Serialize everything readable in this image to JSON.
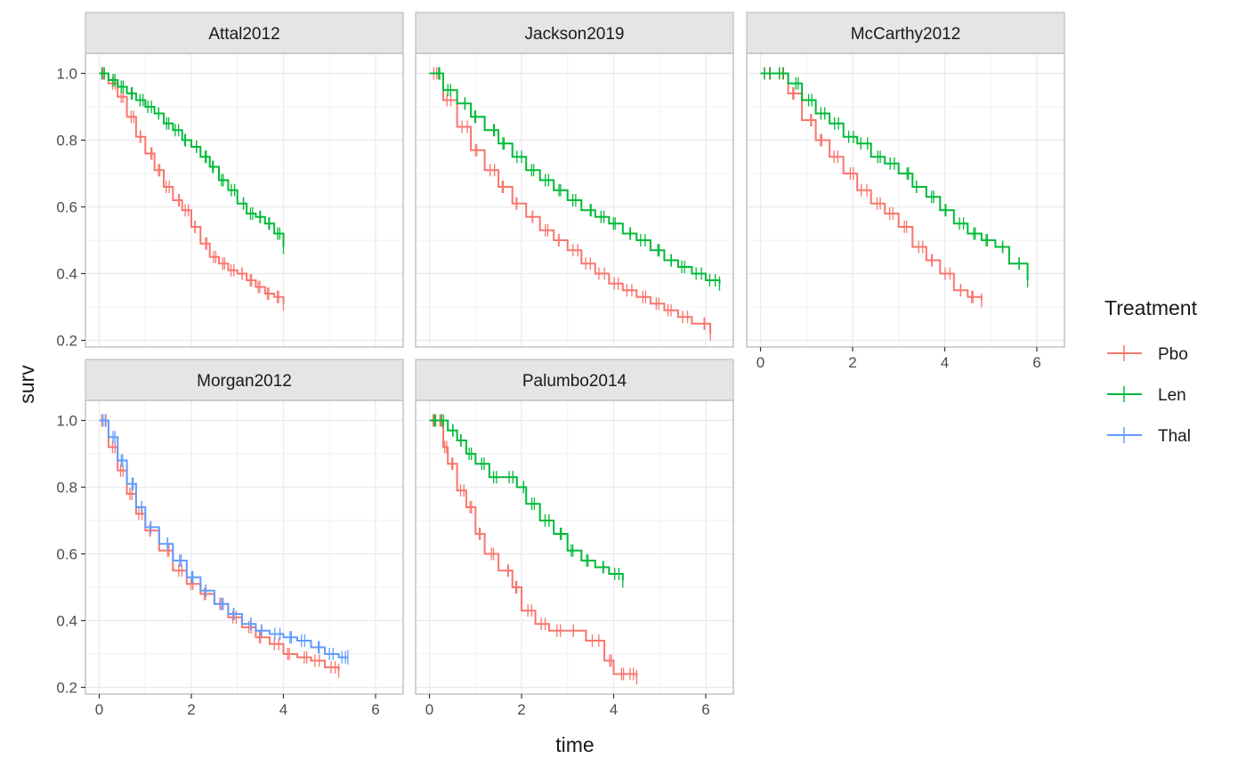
{
  "chart_data": {
    "type": "line",
    "subtype": "kaplan-meier step curves with censor marks, faceted",
    "xlabel": "time",
    "ylabel": "surv",
    "xlim": [
      0,
      6.5
    ],
    "ylim": [
      0.2,
      1.0
    ],
    "x_ticks": [
      "0",
      "2",
      "4",
      "6"
    ],
    "y_ticks": [
      "0.2",
      "0.4",
      "0.6",
      "0.8",
      "1.0"
    ],
    "grid": true,
    "legend": {
      "title": "Treatment",
      "position": "right",
      "entries": [
        {
          "label": "Pbo",
          "color": "#F8766D"
        },
        {
          "label": "Len",
          "color": "#00BA38"
        },
        {
          "label": "Thal",
          "color": "#619CFF"
        }
      ]
    },
    "facets": [
      {
        "title": "Attal2012",
        "series": [
          {
            "name": "Pbo",
            "color": "#F8766D",
            "x": [
              0,
              0.2,
              0.4,
              0.6,
              0.8,
              1.0,
              1.2,
              1.4,
              1.6,
              1.8,
              2.0,
              2.2,
              2.4,
              2.6,
              2.8,
              3.0,
              3.2,
              3.4,
              3.6,
              3.8,
              4.0
            ],
            "y": [
              1.0,
              0.97,
              0.93,
              0.87,
              0.81,
              0.76,
              0.71,
              0.66,
              0.62,
              0.59,
              0.54,
              0.49,
              0.45,
              0.43,
              0.41,
              0.4,
              0.38,
              0.36,
              0.34,
              0.33,
              0.31
            ]
          },
          {
            "name": "Len",
            "color": "#00BA38",
            "x": [
              0,
              0.2,
              0.4,
              0.6,
              0.8,
              1.0,
              1.2,
              1.4,
              1.6,
              1.8,
              2.0,
              2.2,
              2.4,
              2.6,
              2.8,
              3.0,
              3.2,
              3.4,
              3.6,
              3.8,
              4.0
            ],
            "y": [
              1.0,
              0.98,
              0.96,
              0.94,
              0.92,
              0.9,
              0.88,
              0.85,
              0.83,
              0.8,
              0.78,
              0.75,
              0.72,
              0.68,
              0.65,
              0.61,
              0.58,
              0.57,
              0.55,
              0.52,
              0.48
            ]
          }
        ]
      },
      {
        "title": "Jackson2019",
        "series": [
          {
            "name": "Pbo",
            "color": "#F8766D",
            "x": [
              0,
              0.3,
              0.6,
              0.9,
              1.2,
              1.5,
              1.8,
              2.1,
              2.4,
              2.7,
              3.0,
              3.3,
              3.6,
              3.9,
              4.2,
              4.5,
              4.8,
              5.1,
              5.4,
              5.7,
              6.1
            ],
            "y": [
              1.0,
              0.92,
              0.84,
              0.77,
              0.71,
              0.66,
              0.61,
              0.57,
              0.53,
              0.5,
              0.47,
              0.43,
              0.4,
              0.37,
              0.35,
              0.33,
              0.31,
              0.29,
              0.27,
              0.25,
              0.22
            ]
          },
          {
            "name": "Len",
            "color": "#00BA38",
            "x": [
              0,
              0.3,
              0.6,
              0.9,
              1.2,
              1.5,
              1.8,
              2.1,
              2.4,
              2.7,
              3.0,
              3.3,
              3.6,
              3.9,
              4.2,
              4.5,
              4.8,
              5.1,
              5.4,
              5.7,
              6.0,
              6.3
            ],
            "y": [
              1.0,
              0.95,
              0.91,
              0.87,
              0.83,
              0.79,
              0.75,
              0.71,
              0.68,
              0.65,
              0.62,
              0.59,
              0.57,
              0.55,
              0.52,
              0.5,
              0.47,
              0.44,
              0.42,
              0.4,
              0.38,
              0.37
            ]
          }
        ]
      },
      {
        "title": "McCarthy2012",
        "series": [
          {
            "name": "Pbo",
            "color": "#F8766D",
            "x": [
              0,
              0.3,
              0.6,
              0.9,
              1.2,
              1.5,
              1.8,
              2.1,
              2.4,
              2.7,
              3.0,
              3.3,
              3.6,
              3.9,
              4.2,
              4.5,
              4.8
            ],
            "y": [
              1.0,
              1.0,
              0.94,
              0.86,
              0.8,
              0.75,
              0.7,
              0.65,
              0.61,
              0.58,
              0.54,
              0.48,
              0.44,
              0.4,
              0.35,
              0.33,
              0.32
            ]
          },
          {
            "name": "Len",
            "color": "#00BA38",
            "x": [
              0,
              0.3,
              0.6,
              0.9,
              1.2,
              1.5,
              1.8,
              2.1,
              2.4,
              2.7,
              3.0,
              3.3,
              3.6,
              3.9,
              4.2,
              4.5,
              4.8,
              5.1,
              5.4,
              5.8
            ],
            "y": [
              1.0,
              1.0,
              0.97,
              0.92,
              0.88,
              0.85,
              0.81,
              0.79,
              0.75,
              0.73,
              0.7,
              0.66,
              0.63,
              0.59,
              0.55,
              0.52,
              0.5,
              0.48,
              0.43,
              0.38
            ]
          }
        ]
      },
      {
        "title": "Morgan2012",
        "series": [
          {
            "name": "Pbo",
            "color": "#F8766D",
            "x": [
              0,
              0.2,
              0.4,
              0.6,
              0.8,
              1.0,
              1.3,
              1.6,
              1.9,
              2.2,
              2.5,
              2.8,
              3.1,
              3.4,
              3.7,
              4.0,
              4.3,
              4.6,
              4.9,
              5.2
            ],
            "y": [
              1.0,
              0.92,
              0.85,
              0.78,
              0.72,
              0.67,
              0.61,
              0.55,
              0.51,
              0.48,
              0.45,
              0.41,
              0.38,
              0.35,
              0.33,
              0.3,
              0.29,
              0.28,
              0.26,
              0.25
            ]
          },
          {
            "name": "Thal",
            "color": "#619CFF",
            "x": [
              0,
              0.2,
              0.4,
              0.6,
              0.8,
              1.0,
              1.3,
              1.6,
              1.9,
              2.2,
              2.5,
              2.8,
              3.1,
              3.4,
              3.7,
              4.0,
              4.3,
              4.6,
              4.9,
              5.2,
              5.4
            ],
            "y": [
              1.0,
              0.95,
              0.88,
              0.81,
              0.74,
              0.68,
              0.63,
              0.58,
              0.53,
              0.49,
              0.45,
              0.42,
              0.39,
              0.37,
              0.36,
              0.35,
              0.34,
              0.32,
              0.3,
              0.29,
              0.29
            ]
          }
        ]
      },
      {
        "title": "Palumbo2014",
        "series": [
          {
            "name": "Pbo",
            "color": "#F8766D",
            "x": [
              0,
              0.2,
              0.3,
              0.4,
              0.6,
              0.8,
              1.0,
              1.2,
              1.5,
              1.8,
              2.0,
              2.3,
              2.6,
              3.0,
              3.4,
              3.8,
              4.0,
              4.3,
              4.5
            ],
            "y": [
              1.0,
              1.0,
              0.92,
              0.87,
              0.79,
              0.74,
              0.66,
              0.6,
              0.55,
              0.5,
              0.43,
              0.39,
              0.37,
              0.37,
              0.34,
              0.28,
              0.24,
              0.24,
              0.23
            ]
          },
          {
            "name": "Len",
            "color": "#00BA38",
            "x": [
              0,
              0.2,
              0.4,
              0.6,
              0.8,
              1.0,
              1.3,
              1.6,
              1.9,
              2.1,
              2.4,
              2.7,
              3.0,
              3.3,
              3.6,
              3.9,
              4.2
            ],
            "y": [
              1.0,
              1.0,
              0.97,
              0.94,
              0.9,
              0.87,
              0.83,
              0.83,
              0.8,
              0.75,
              0.7,
              0.66,
              0.61,
              0.58,
              0.56,
              0.54,
              0.52
            ]
          }
        ]
      }
    ]
  }
}
